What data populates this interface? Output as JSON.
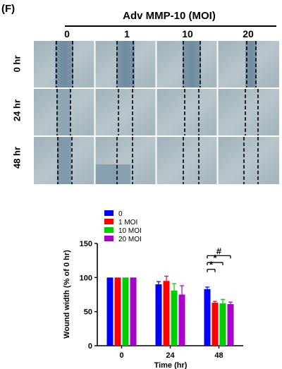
{
  "figure": {
    "panel_letter": "(F)",
    "group_title": "Adv MMP-10 (MOI)",
    "column_labels": [
      "0",
      "1",
      "10",
      "20"
    ],
    "row_labels": [
      "0 hr",
      "24 hr",
      "48 hr"
    ]
  },
  "chart_data": {
    "type": "bar",
    "categories": [
      "0",
      "24",
      "48"
    ],
    "xlabel": "Time (hr)",
    "ylabel": "Wound width (% of 0 hr)",
    "ylim": [
      0,
      150
    ],
    "yticks": [
      "0",
      "50",
      "100",
      "150"
    ],
    "legend_position": "top-left",
    "series": [
      {
        "name": "0",
        "color": "#0000ff",
        "values": [
          100,
          90,
          83
        ],
        "errors": [
          0,
          4,
          3
        ]
      },
      {
        "name": "1 MOI",
        "color": "#ff0000",
        "values": [
          100,
          95,
          63
        ],
        "errors": [
          0,
          7,
          2
        ]
      },
      {
        "name": "10 MOI",
        "color": "#00cc00",
        "values": [
          100,
          81,
          62
        ],
        "errors": [
          0,
          10,
          6
        ]
      },
      {
        "name": "20 MOI",
        "color": "#aa00cc",
        "values": [
          100,
          75,
          61
        ],
        "errors": [
          0,
          13,
          3
        ]
      }
    ],
    "annotations": [
      {
        "label": "*",
        "category": "48",
        "from_series": "0",
        "to_series": "1 MOI"
      },
      {
        "label": "*",
        "category": "48",
        "from_series": "0",
        "to_series": "10 MOI"
      },
      {
        "label": "#",
        "category": "48",
        "from_series": "0",
        "to_series": "20 MOI"
      }
    ]
  }
}
